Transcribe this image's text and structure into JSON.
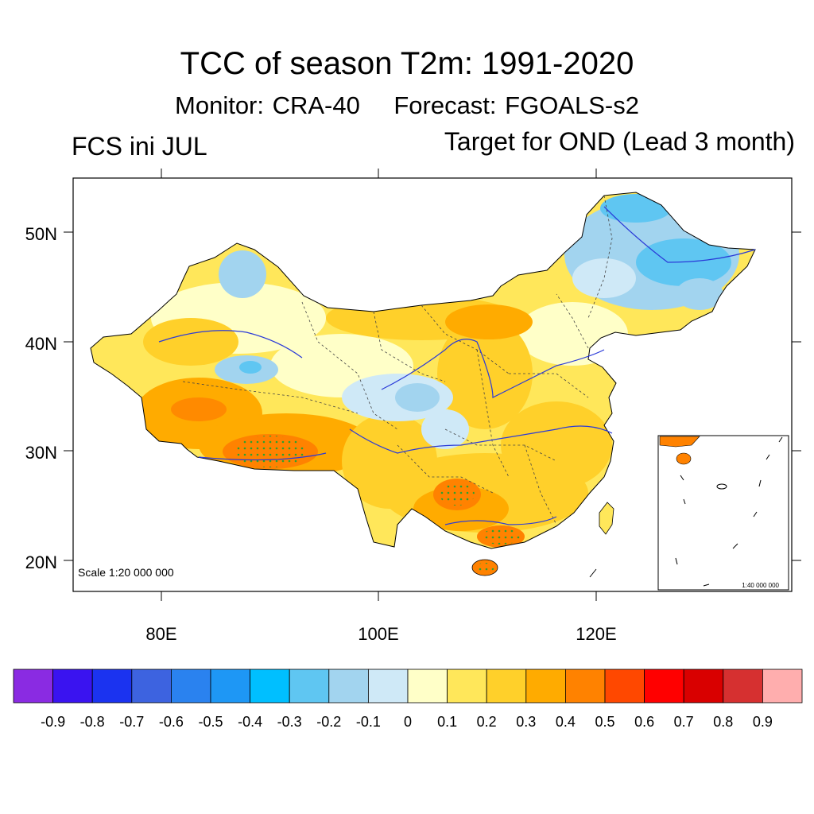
{
  "figure": {
    "title": "TCC of season T2m: 1991-2020",
    "subtitle_monitor": "Monitor: CRA-40",
    "subtitle_forecast": "Forecast: FGOALS-s2",
    "init_label": "FCS ini JUL",
    "target_label": "Target for OND (Lead 3 month)",
    "scale_label": "Scale 1:20 000 000",
    "inset_scale_label": "1:40 000 000"
  },
  "axes": {
    "lat_labels": [
      "50N",
      "40N",
      "30N",
      "20N"
    ],
    "lon_labels": [
      "80E",
      "100E",
      "120E"
    ]
  },
  "colorbar": {
    "colors": [
      "#8a2be2",
      "#3a13f0",
      "#1b33f0",
      "#3d63e0",
      "#2a82ef",
      "#1e97f5",
      "#00bfff",
      "#5fc6f2",
      "#a2d4ef",
      "#cfe9f7",
      "#ffffc8",
      "#ffe75a",
      "#ffd02a",
      "#ffab00",
      "#ff8200",
      "#ff4800",
      "#ff0000",
      "#d90000",
      "#d63030",
      "#ffaeae"
    ],
    "labels": [
      "-0.9",
      "-0.8",
      "-0.7",
      "-0.6",
      "-0.5",
      "-0.4",
      "-0.3",
      "-0.2",
      "-0.1",
      "0",
      "0.1",
      "0.2",
      "0.3",
      "0.4",
      "0.5",
      "0.6",
      "0.7",
      "0.8",
      "0.9"
    ]
  }
}
